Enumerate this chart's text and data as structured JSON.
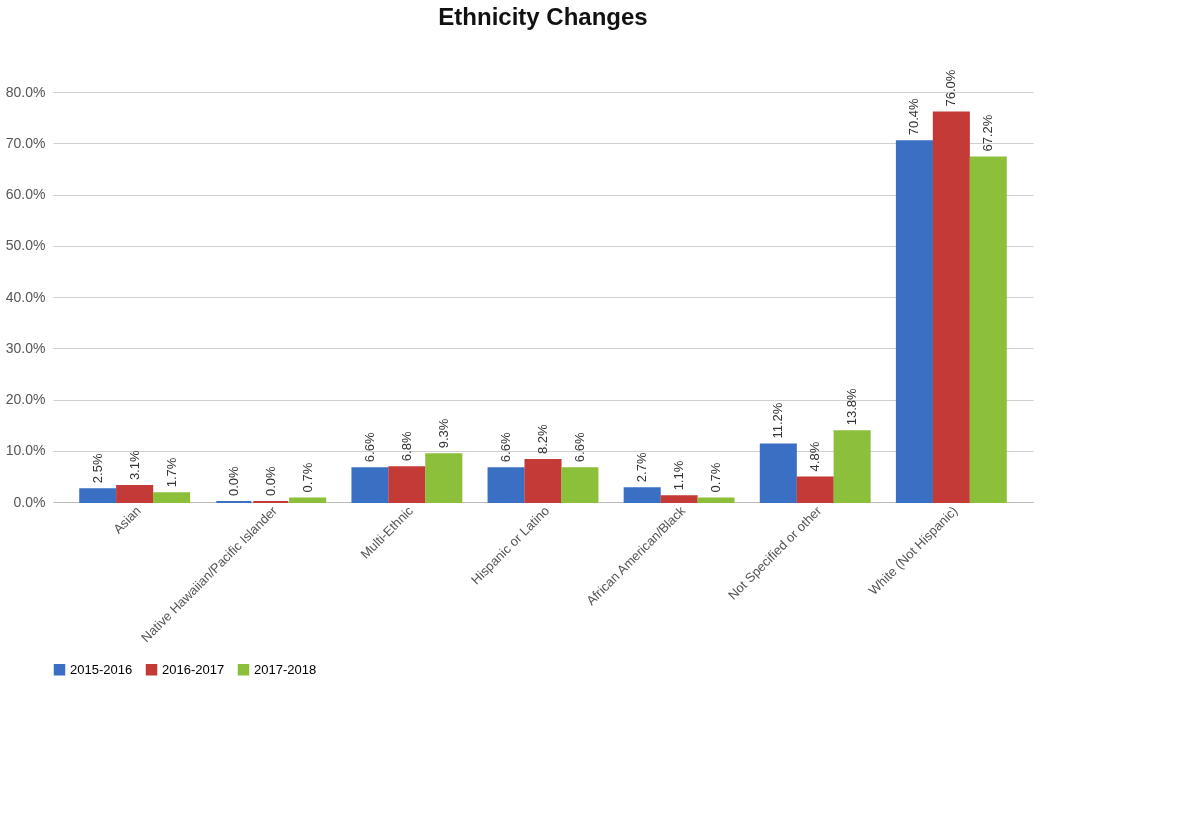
{
  "chart_data": {
    "type": "bar",
    "title": "Ethnicity Changes",
    "categories": [
      "Asian",
      "Native Hawaiian/Pacific Islander",
      "Multi-Ethnic",
      "Hispanic or Latino",
      "African American/Black",
      "Not Specified or other",
      "White (Not Hispanic)"
    ],
    "series": [
      {
        "name": "2015-2016",
        "color": "#3a6fc4",
        "values": [
          2.5,
          0.0,
          6.6,
          6.6,
          2.7,
          11.2,
          70.4
        ],
        "value_labels": [
          "2.5%",
          "0.0%",
          "6.6%",
          "6.6%",
          "2.7%",
          "11.2%",
          "70.4%"
        ]
      },
      {
        "name": "2016-2017",
        "color": "#c43a36",
        "values": [
          3.1,
          0.0,
          6.8,
          8.2,
          1.1,
          4.8,
          76.0
        ],
        "value_labels": [
          "3.1%",
          "0.0%",
          "6.8%",
          "8.2%",
          "1.1%",
          "4.8%",
          "76.0%"
        ]
      },
      {
        "name": "2017-2018",
        "color": "#8cbf3a",
        "values": [
          1.7,
          0.7,
          9.3,
          6.6,
          0.7,
          13.8,
          67.2
        ],
        "value_labels": [
          "1.7%",
          "0.7%",
          "9.3%",
          "6.6%",
          "0.7%",
          "13.8%",
          "67.2%"
        ]
      }
    ],
    "ylim": [
      0,
      80
    ],
    "yticks": [
      {
        "value": 0,
        "label": "0.0%"
      },
      {
        "value": 10,
        "label": "10.0%"
      },
      {
        "value": 20,
        "label": "20.0%"
      },
      {
        "value": 30,
        "label": "30.0%"
      },
      {
        "value": 40,
        "label": "40.0%"
      },
      {
        "value": 50,
        "label": "50.0%"
      },
      {
        "value": 60,
        "label": "60.0%"
      },
      {
        "value": 70,
        "label": "70.0%"
      },
      {
        "value": 80,
        "label": "80.0%"
      }
    ],
    "grid": "y",
    "legend": "bottom"
  }
}
